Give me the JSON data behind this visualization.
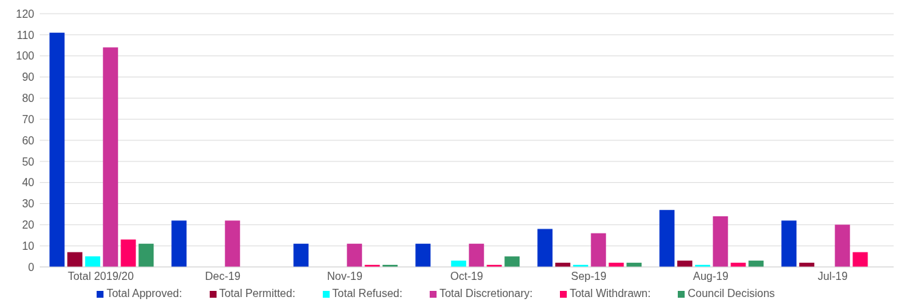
{
  "chart_data": {
    "type": "bar",
    "categories": [
      "Total 2019/20",
      "Dec-19",
      "Nov-19",
      "Oct-19",
      "Sep-19",
      "Aug-19",
      "Jul-19"
    ],
    "series": [
      {
        "name": "Total Approved:",
        "color": "#0033cc",
        "values": [
          111,
          22,
          11,
          11,
          18,
          27,
          22
        ]
      },
      {
        "name": "Total Permitted:",
        "color": "#990033",
        "values": [
          7,
          0,
          0,
          0,
          2,
          3,
          2
        ]
      },
      {
        "name": "Total Refused:",
        "color": "#00ffff",
        "values": [
          5,
          0,
          0,
          3,
          1,
          1,
          0
        ]
      },
      {
        "name": "Total Discretionary:",
        "color": "#cc3399",
        "values": [
          104,
          22,
          11,
          11,
          16,
          24,
          20
        ]
      },
      {
        "name": "Total Withdrawn:",
        "color": "#ff0066",
        "values": [
          13,
          0,
          1,
          1,
          2,
          2,
          7
        ]
      },
      {
        "name": "Council Decisions",
        "color": "#339966",
        "values": [
          11,
          0,
          1,
          5,
          2,
          3,
          0
        ]
      }
    ],
    "ylim": [
      0,
      120
    ],
    "yticks": [
      0,
      10,
      20,
      30,
      40,
      50,
      60,
      70,
      80,
      90,
      100,
      110,
      120
    ],
    "grid": "y",
    "legend": "bottom"
  }
}
